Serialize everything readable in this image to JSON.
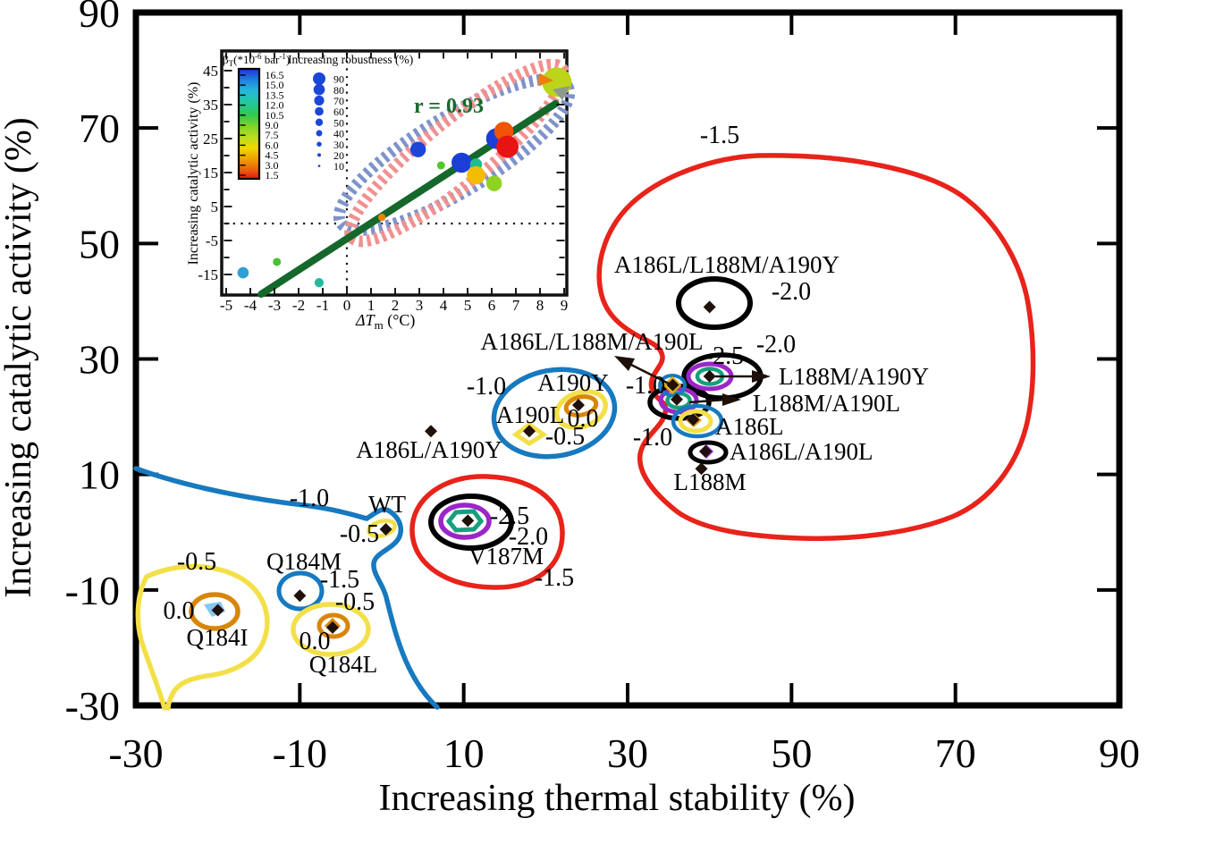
{
  "chart_data": [
    {
      "id": "main",
      "type": "scatter",
      "title": "",
      "xlabel": "Increasing thermal stability (%)",
      "ylabel": "Increasing catalytic activity (%)",
      "xlim": [
        -30,
        90
      ],
      "ylim": [
        -30,
        90
      ],
      "grid": false,
      "xticks": [
        -30,
        -10,
        10,
        30,
        50,
        70,
        90
      ],
      "yticks": [
        90,
        70,
        50,
        30,
        10,
        -10,
        -30
      ],
      "points": [
        {
          "label": "WT",
          "x": 0.5,
          "y": 0.5
        },
        {
          "label": "Q184I",
          "x": -20,
          "y": -13.5
        },
        {
          "label": "Q184M",
          "x": -10,
          "y": -11
        },
        {
          "label": "Q184L",
          "x": -6,
          "y": -16.5
        },
        {
          "label": "V187M",
          "x": 10.5,
          "y": 2
        },
        {
          "label": "A186L/A190Y",
          "x": 6,
          "y": 17.5
        },
        {
          "label": "A190L",
          "x": 18,
          "y": 17.5
        },
        {
          "label": "A190Y",
          "x": 24,
          "y": 22
        },
        {
          "label": "A186L",
          "x": 38,
          "y": 19.5
        },
        {
          "label": "L188M",
          "x": 39,
          "y": 11
        },
        {
          "label": "A186L/A190L",
          "x": 39.5,
          "y": 14
        },
        {
          "label": "L188M/A190L",
          "x": 36,
          "y": 23
        },
        {
          "label": "L188M/A190Y",
          "x": 40,
          "y": 27
        },
        {
          "label": "A186L/L188M/A190L",
          "x": 35.5,
          "y": 25.5
        },
        {
          "label": "A186L/L188M/A190Y",
          "x": 40,
          "y": 39
        }
      ],
      "contour_labels": [
        "-1.5",
        "-2.0",
        "-2.0",
        "-2.5",
        "-1.0",
        "-1.0",
        "-1.0",
        "0.0",
        "-0.5",
        "-2.5",
        "-2.0",
        "-1.5",
        "-1.0",
        "-0.5",
        "-1.5",
        "-0.5",
        "0.0",
        "-0.5",
        "0.0"
      ],
      "contour_colors": {
        "red": "#e8231a",
        "black": "#000000",
        "blue": "#1779bf",
        "yellow": "#f3e049",
        "orange": "#dd8c09",
        "purple": "#9b26c8",
        "teal": "#16a07c"
      }
    },
    {
      "id": "inset",
      "type": "scatter",
      "xlabel_parts": [
        "ΔT",
        "m",
        " (°C)"
      ],
      "ylabel": "Increasing catalytic activity (%)",
      "xlim": [
        -5.4,
        9.1
      ],
      "ylim": [
        -20.5,
        50.8
      ],
      "xticks": [
        -5,
        -4,
        -3,
        -2,
        -1,
        0,
        1,
        2,
        3,
        4,
        5,
        6,
        7,
        8,
        9
      ],
      "yticks": [
        45,
        35,
        25,
        15,
        5,
        -5,
        -15
      ],
      "r_label": "r = 0.93",
      "correlation": 0.93,
      "trend_line": {
        "x1": -3.55,
        "y1": -20.8,
        "x2": 8.65,
        "y2": 35.3
      },
      "colorbar": {
        "title_parts": [
          "β",
          "T",
          "(*10",
          "-6",
          " bar",
          "-1",
          ")"
        ],
        "tick_labels": [
          "16.5",
          "15.0",
          "13.5",
          "12.0",
          "10.5",
          "9.0",
          "7.5",
          "6.0",
          "4.5",
          "3.0",
          "1.5"
        ],
        "colors_top_to_bottom": [
          "#1e30d8",
          "#2080e0",
          "#28b8d8",
          "#22c8a0",
          "#30c850",
          "#7ed428",
          "#b8dc1e",
          "#f0d800",
          "#f0a000",
          "#e86010",
          "#e81414"
        ]
      },
      "size_legend": {
        "title": "Increasing robustness (%)",
        "values": [
          90,
          80,
          70,
          60,
          50,
          40,
          30,
          20,
          10
        ]
      },
      "points": [
        {
          "dTm": -4.3,
          "activity": -14.5,
          "beta_t": 13.5,
          "robustness": 22,
          "color": "#2e9fd4"
        },
        {
          "dTm": -2.9,
          "activity": -11.3,
          "beta_t": 9.0,
          "robustness": 10,
          "color": "#46c430"
        },
        {
          "dTm": -1.15,
          "activity": -17.4,
          "beta_t": 11.0,
          "robustness": 14,
          "color": "#28b89e"
        },
        {
          "dTm": 1.45,
          "activity": 1.8,
          "beta_t": 4.5,
          "robustness": 8,
          "color": "#ef8404"
        },
        {
          "dTm": 2.95,
          "activity": 21.8,
          "beta_t": 15.0,
          "robustness": 38,
          "color": "#1c46d8"
        },
        {
          "dTm": 3.9,
          "activity": 17.1,
          "beta_t": 8.5,
          "robustness": 10,
          "color": "#52c828"
        },
        {
          "dTm": 4.75,
          "activity": 17.9,
          "beta_t": 15.5,
          "robustness": 55,
          "color": "#1c3ed8"
        },
        {
          "dTm": 5.35,
          "activity": 17.4,
          "beta_t": 11.5,
          "robustness": 25,
          "color": "#22bb92"
        },
        {
          "dTm": 5.35,
          "activity": 14.2,
          "beta_t": 6.0,
          "robustness": 48,
          "color": "#f2bc00"
        },
        {
          "dTm": 6.1,
          "activity": 11.8,
          "beta_t": 7.5,
          "robustness": 38,
          "color": "#8ed222"
        },
        {
          "dTm": 6.2,
          "activity": 25.0,
          "beta_t": 15.5,
          "robustness": 58,
          "color": "#1c3ed8"
        },
        {
          "dTm": 6.5,
          "activity": 27.1,
          "beta_t": 3.5,
          "robustness": 52,
          "color": "#ee5507"
        },
        {
          "dTm": 6.65,
          "activity": 22.6,
          "beta_t": 2.0,
          "robustness": 63,
          "color": "#e81414"
        },
        {
          "dTm": 8.7,
          "activity": 41.6,
          "beta_t": 7.0,
          "robustness": 90,
          "color": "#bcd419"
        }
      ]
    }
  ]
}
